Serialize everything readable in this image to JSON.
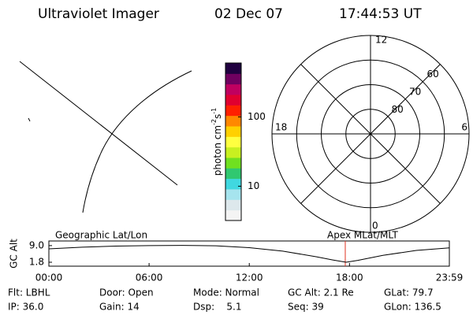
{
  "header": {
    "title": "Ultraviolet Imager",
    "date": "02 Dec 07",
    "time": "17:44:53 UT"
  },
  "chart_data": [
    {
      "type": "colorbar",
      "label": [
        "photon cm",
        "-2",
        "s",
        "-1"
      ],
      "log": true,
      "ylim": [
        3.2,
        600
      ],
      "yticks": [
        10,
        100
      ]
    },
    {
      "type": "polar",
      "rlim": [
        90,
        50
      ],
      "rticks": [
        60,
        70,
        80
      ],
      "categories": [
        "12",
        "18",
        "6",
        "0"
      ]
    },
    {
      "type": "line",
      "ylabel": "GC Alt",
      "left_label": "Geographic Lat/Lon",
      "right_label": "Apex MLat/MLT",
      "x": [
        0,
        2,
        4,
        6,
        8,
        10,
        12,
        14,
        16,
        17,
        17.8,
        18.5,
        20,
        22,
        23.98
      ],
      "series": [
        {
          "name": "GC Alt",
          "color": "#000000",
          "values": [
            7.6,
            8.3,
            8.8,
            9.0,
            9.1,
            8.9,
            8.1,
            6.6,
            4.2,
            2.8,
            1.8,
            2.6,
            4.8,
            6.9,
            8.0
          ]
        }
      ],
      "current_time": 17.748,
      "current_color": "#e03020",
      "xlim": [
        0,
        23.98
      ],
      "ylim": [
        0.1,
        11.0
      ],
      "xticks": [
        {
          "value": 0,
          "label": "00:00"
        },
        {
          "value": 6,
          "label": "06:00"
        },
        {
          "value": 12,
          "label": "12:00"
        },
        {
          "value": 18,
          "label": "18:00"
        },
        {
          "value": 23.98,
          "label": "23:59"
        }
      ],
      "yticks": [
        {
          "value": 9.0,
          "label": "9.0"
        },
        {
          "value": 1.8,
          "label": "1.8"
        }
      ]
    }
  ],
  "footer": {
    "rows": [
      [
        "Flt: LBHL",
        "Door: Open",
        "Mode: Normal",
        "GC Alt: 2.1 Re",
        "GLat: 79.7"
      ],
      [
        "IP: 36.0",
        "Gain: 14",
        "Dsp:    5.1",
        "Seq: 39",
        "GLon: 136.5"
      ]
    ]
  }
}
